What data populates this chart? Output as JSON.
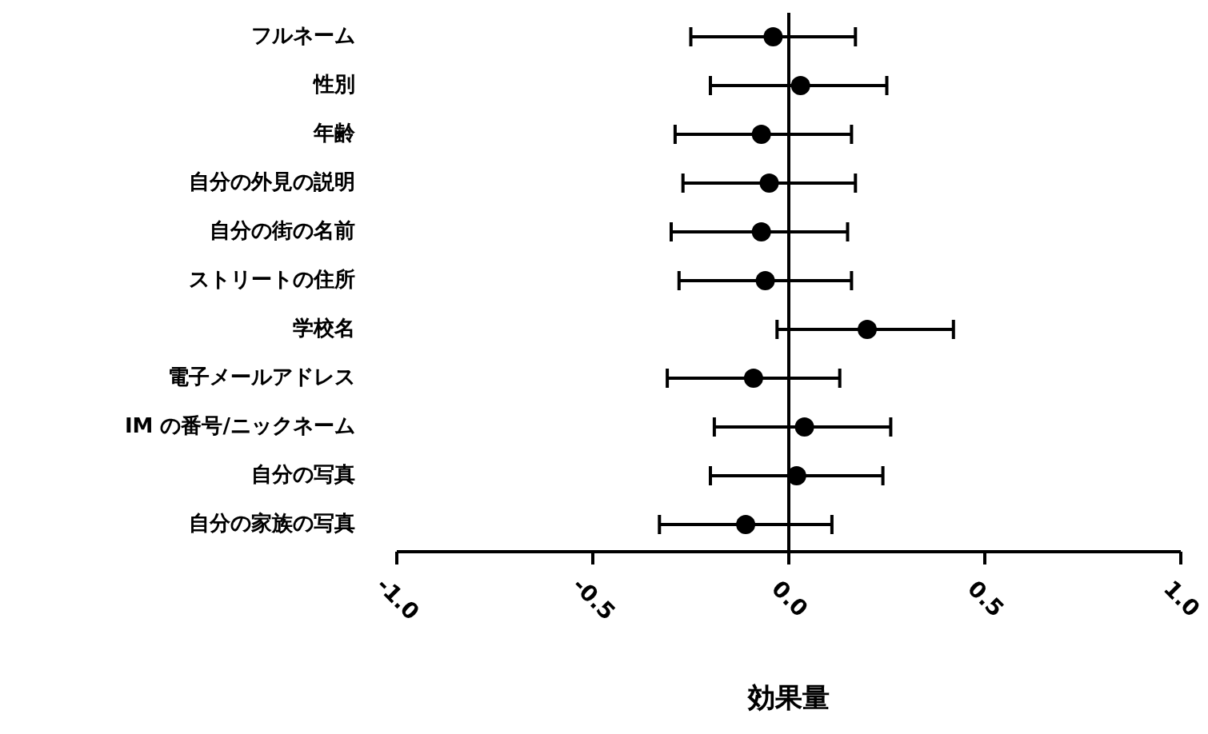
{
  "chart_data": {
    "type": "scatter",
    "orientation": "horizontal",
    "marker": "circle",
    "color": "#000000",
    "categories": [
      "フルネーム",
      "性別",
      "年齢",
      "自分の外見の説明",
      "自分の街の名前",
      "ストリートの住所",
      "学校名",
      "電子メールアドレス",
      "IM の番号/ニックネーム",
      "自分の写真",
      "自分の家族の写真"
    ],
    "values": [
      -0.04,
      0.03,
      -0.07,
      -0.05,
      -0.07,
      -0.06,
      0.2,
      -0.09,
      0.04,
      0.02,
      -0.11
    ],
    "errors": [
      [
        -0.25,
        0.17
      ],
      [
        -0.2,
        0.25
      ],
      [
        -0.29,
        0.16
      ],
      [
        -0.27,
        0.17
      ],
      [
        -0.3,
        0.15
      ],
      [
        -0.28,
        0.16
      ],
      [
        -0.03,
        0.42
      ],
      [
        -0.31,
        0.13
      ],
      [
        -0.19,
        0.26
      ],
      [
        -0.2,
        0.24
      ],
      [
        -0.33,
        0.11
      ]
    ],
    "xlim": [
      -1,
      1
    ],
    "xticks": [
      {
        "value": -1,
        "label": "-1.0"
      },
      {
        "value": -0.5,
        "label": "-0.5"
      },
      {
        "value": 0,
        "label": "0.0"
      },
      {
        "value": 0.5,
        "label": "0.5"
      },
      {
        "value": 1,
        "label": "1.0"
      }
    ],
    "xlabel": "効果量",
    "ref_lines": [
      {
        "axis": "x",
        "value": 0,
        "color": "#000000"
      }
    ],
    "grid": false
  }
}
